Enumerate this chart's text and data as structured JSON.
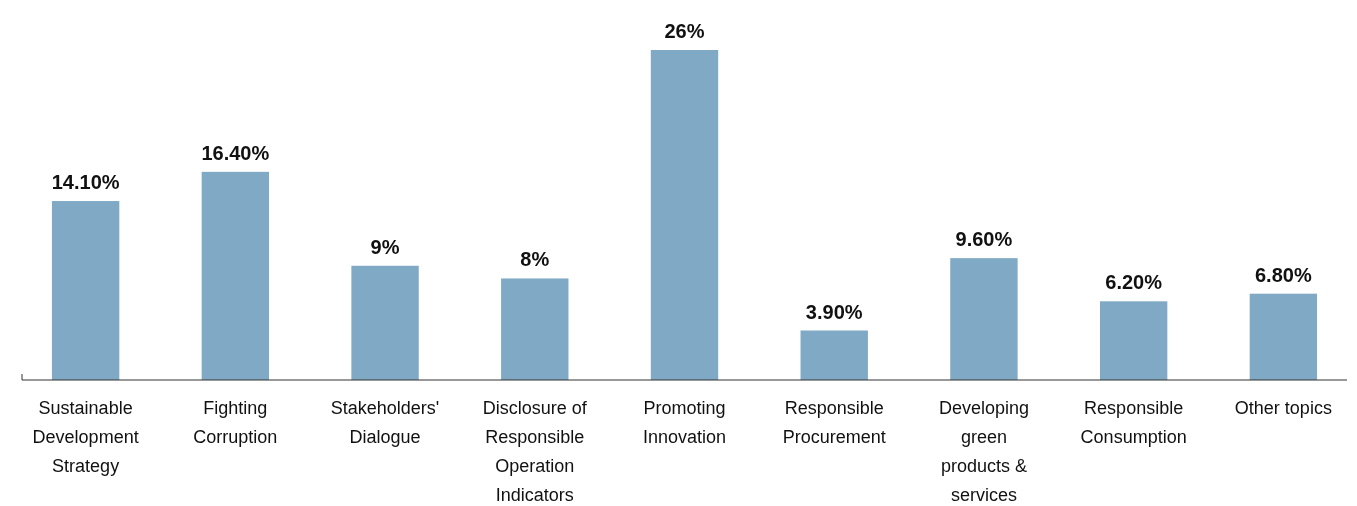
{
  "chart_data": {
    "type": "bar",
    "categories": [
      "Sustainable Development Strategy",
      "Fighting Corruption",
      "Stakeholders' Dialogue",
      "Disclosure of Responsible Operation Indicators",
      "Promoting Innovation",
      "Responsible Procurement",
      "Developing green products & services",
      "Responsible Consumption",
      "Other topics"
    ],
    "values": [
      14.1,
      16.4,
      9,
      8,
      26,
      3.9,
      9.6,
      6.2,
      6.8
    ],
    "value_labels": [
      "14.10%",
      "16.40%",
      "9%",
      "8%",
      "26%",
      "3.90%",
      "9.60%",
      "6.20%",
      "6.80%"
    ],
    "color": "#7fa9c4"
  }
}
